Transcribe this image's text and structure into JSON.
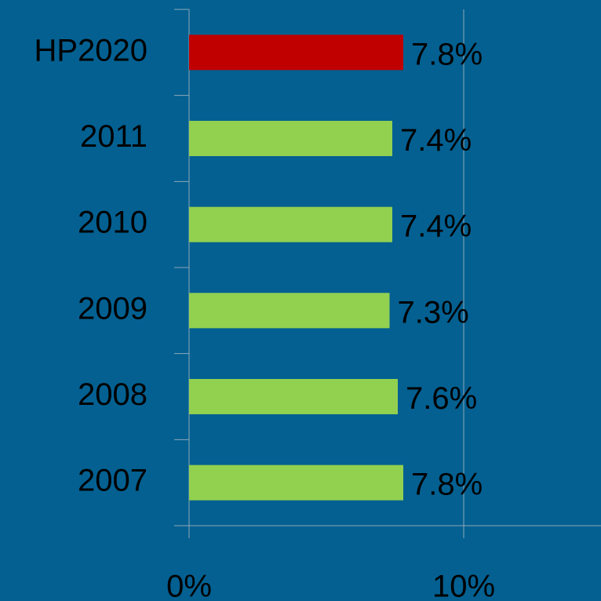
{
  "chart_data": {
    "type": "barh",
    "categories": [
      "HP2020",
      "2011",
      "2010",
      "2009",
      "2008",
      "2007"
    ],
    "values": [
      7.8,
      7.4,
      7.4,
      7.3,
      7.6,
      7.8
    ],
    "value_labels": [
      "7.8%",
      "7.4%",
      "7.4%",
      "7.3%",
      "7.6%",
      "7.8%"
    ],
    "colors": [
      "#c00000",
      "#92d050",
      "#92d050",
      "#92d050",
      "#92d050",
      "#92d050"
    ],
    "xlim": [
      0,
      15
    ],
    "xticks": [
      {
        "value": 0,
        "label": "0%"
      },
      {
        "value": 10,
        "label": "10%"
      }
    ],
    "grid": true
  }
}
